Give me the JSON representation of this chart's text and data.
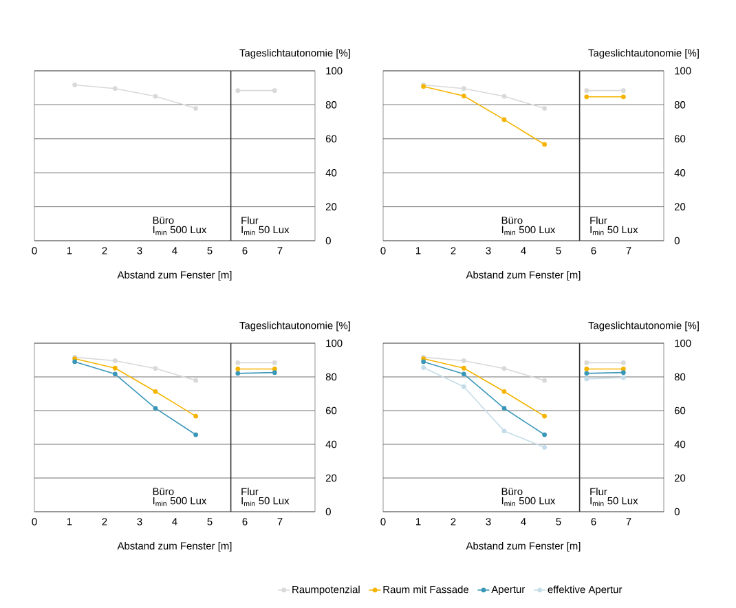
{
  "chart_data": [
    {
      "type": "line",
      "ylabel": "Tageslichtautonomie [%]",
      "xlabel": "Abstand zum Fenster [m]",
      "x": [
        1.15,
        2.3,
        3.45,
        4.6,
        5.6,
        5.8,
        6.85
      ],
      "xlim": [
        0,
        8
      ],
      "xticks": [
        0,
        1,
        2,
        3,
        4,
        5,
        6,
        7
      ],
      "ylim": [
        0,
        100
      ],
      "yticks": [
        0,
        20,
        40,
        60,
        80,
        100
      ],
      "grid": "y",
      "marker": "circle",
      "line_style": "solid",
      "ref_lines": [
        {
          "axis": "x",
          "value": 5.6
        }
      ],
      "annotations": [
        "Büro",
        "I$_{min}$ 500 Lux",
        "Flur",
        "I$_{min}$ 50 Lux"
      ],
      "series": [
        {
          "color": "#d9d9d9",
          "values": [
            91.7,
            89.6,
            85,
            77.9,
            null,
            88.4,
            88.4
          ]
        }
      ]
    },
    {
      "type": "line",
      "ylabel": "Tageslichtautonomie [%]",
      "xlabel": "Abstand zum Fenster [m]",
      "x": [
        1.15,
        2.3,
        3.45,
        4.6,
        5.6,
        5.8,
        6.85
      ],
      "xlim": [
        0,
        8
      ],
      "xticks": [
        0,
        1,
        2,
        3,
        4,
        5,
        6,
        7
      ],
      "ylim": [
        0,
        100
      ],
      "yticks": [
        0,
        20,
        40,
        60,
        80,
        100
      ],
      "grid": "y",
      "marker": "circle",
      "line_style": "solid",
      "ref_lines": [
        {
          "axis": "x",
          "value": 5.6
        }
      ],
      "annotations": [
        "Büro",
        "I$_{min}$ 500 Lux",
        "Flur",
        "I$_{min}$ 50 Lux"
      ],
      "series": [
        {
          "color": "#d9d9d9",
          "values": [
            91.7,
            89.6,
            85,
            77.9,
            null,
            88.4,
            88.4
          ]
        },
        {
          "color": "#f5b400",
          "values": [
            90.8,
            85.2,
            71.3,
            56.7,
            null,
            84.7,
            84.7
          ]
        }
      ]
    },
    {
      "type": "line",
      "ylabel": "Tageslichtautonomie [%]",
      "xlabel": "Abstand zum Fenster [m]",
      "x": [
        1.15,
        2.3,
        3.45,
        4.6,
        5.6,
        5.8,
        6.85
      ],
      "xlim": [
        0,
        8
      ],
      "xticks": [
        0,
        1,
        2,
        3,
        4,
        5,
        6,
        7
      ],
      "ylim": [
        0,
        100
      ],
      "yticks": [
        0,
        20,
        40,
        60,
        80,
        100
      ],
      "grid": "y",
      "marker": "circle",
      "line_style": "solid",
      "ref_lines": [
        {
          "axis": "x",
          "value": 5.6
        }
      ],
      "annotations": [
        "Büro",
        "I$_{min}$ 500 Lux",
        "Flur",
        "I$_{min}$ 50 Lux"
      ],
      "series": [
        {
          "color": "#d9d9d9",
          "values": [
            91.7,
            89.6,
            85,
            77.9,
            null,
            88.4,
            88.4
          ]
        },
        {
          "color": "#f5b400",
          "values": [
            90.8,
            85.2,
            71.3,
            56.7,
            null,
            84.7,
            84.7
          ]
        },
        {
          "color": "#3a97b8",
          "values": [
            89,
            81.7,
            61.4,
            45.7,
            null,
            82.1,
            82.6
          ]
        }
      ]
    },
    {
      "type": "line",
      "ylabel": "Tageslichtautonomie [%]",
      "xlabel": "Abstand zum Fenster [m]",
      "x": [
        1.15,
        2.3,
        3.45,
        4.6,
        5.6,
        5.8,
        6.85
      ],
      "xlim": [
        0,
        8
      ],
      "xticks": [
        0,
        1,
        2,
        3,
        4,
        5,
        6,
        7
      ],
      "ylim": [
        0,
        100
      ],
      "yticks": [
        0,
        20,
        40,
        60,
        80,
        100
      ],
      "grid": "y",
      "marker": "circle",
      "line_style": "solid",
      "legend": "bottom",
      "ref_lines": [
        {
          "axis": "x",
          "value": 5.6
        }
      ],
      "annotations": [
        "Büro",
        "I$_{min}$ 500 Lux",
        "Flur",
        "I$_{min}$ 50 Lux"
      ],
      "series": [
        {
          "name": "Raumpotenzial",
          "color": "#d9d9d9",
          "values": [
            91.7,
            89.6,
            85,
            77.9,
            null,
            88.4,
            88.4
          ]
        },
        {
          "name": "Raum mit Fassade",
          "color": "#f5b400",
          "values": [
            90.8,
            85.2,
            71.3,
            56.7,
            null,
            84.7,
            84.7
          ]
        },
        {
          "name": "Apertur",
          "color": "#3a97b8",
          "values": [
            89,
            81.7,
            61.4,
            45.7,
            null,
            82.1,
            82.6
          ]
        },
        {
          "name": "effektive Apertur",
          "color": "#c5dde9",
          "values": [
            85.5,
            74.2,
            47.9,
            38.2,
            null,
            78.8,
            79.6
          ]
        }
      ]
    }
  ]
}
